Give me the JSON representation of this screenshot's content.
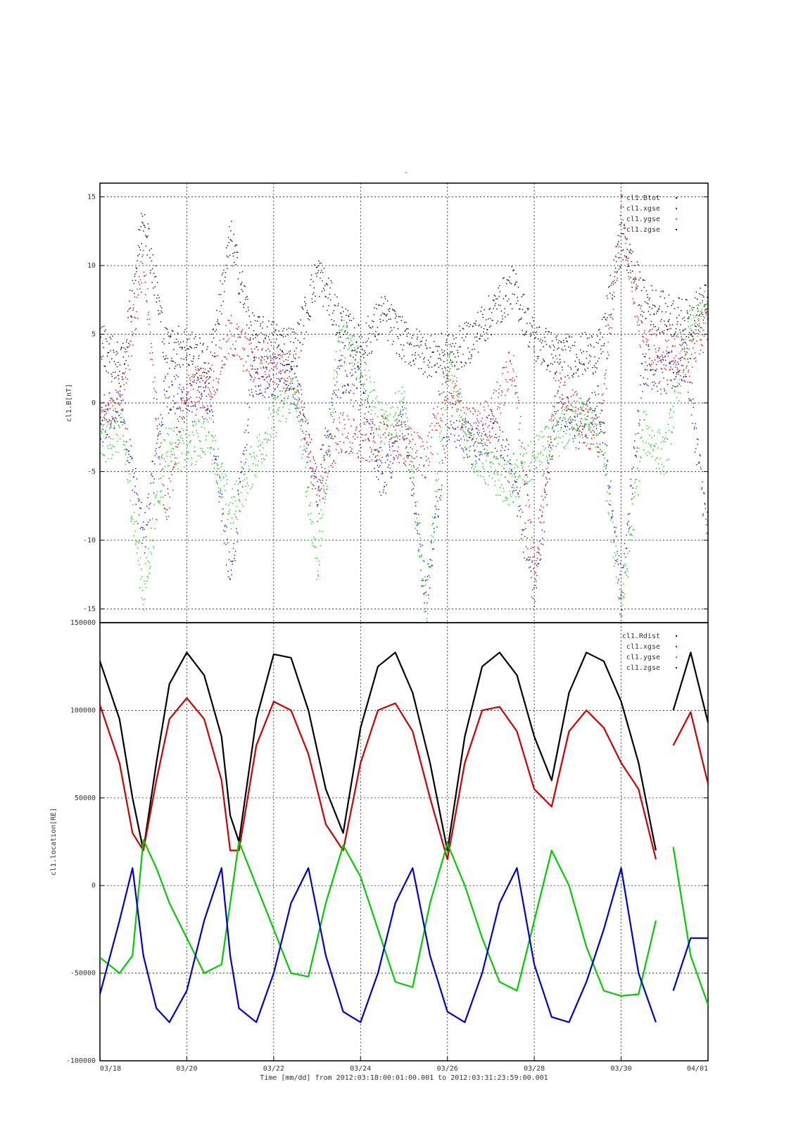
{
  "colors": {
    "black": "#000000",
    "red": "#cc0000",
    "green": "#00cc00",
    "blue": "#0000cc",
    "grid": "#000000"
  },
  "chart_data": [
    {
      "type": "scatter",
      "title": "",
      "ylabel": "cl1.B[nT]",
      "xlabel": "",
      "ylim": [
        -16,
        16
      ],
      "yticks": [
        -15,
        -10,
        -5,
        0,
        5,
        10,
        15
      ],
      "ytick_labels": [
        "-15",
        "-10",
        "-5",
        "0",
        "5",
        "10",
        "15"
      ],
      "grid": true,
      "legend_position": "top-right",
      "series": [
        {
          "name": "cl1.Btot",
          "color": "black",
          "x": [
            "03/18",
            "03/18 12h",
            "03/19",
            "03/19 12h",
            "03/20",
            "03/20 12h",
            "03/21",
            "03/21 12h",
            "03/22",
            "03/22 12h",
            "03/23",
            "03/23 12h",
            "03/24",
            "03/24 12h",
            "03/25",
            "03/25 12h",
            "03/26",
            "03/26 12h",
            "03/27",
            "03/27 12h",
            "03/28",
            "03/28 12h",
            "03/29",
            "03/29 12h",
            "03/30",
            "03/30 12h",
            "03/31",
            "03/31 12h",
            "04/01"
          ],
          "values": [
            4.5,
            2.5,
            14,
            4,
            4.2,
            2.5,
            12,
            5,
            4.5,
            4,
            9.5,
            6,
            4,
            6.5,
            4.5,
            3.5,
            3.5,
            4.5,
            6.5,
            8.5,
            4.5,
            3.5,
            3.5,
            3.8,
            12,
            7.5,
            6.5,
            6,
            7.5
          ]
        },
        {
          "name": "cl1.xgse",
          "color": "red",
          "x": [
            "03/18",
            "03/18 12h",
            "03/19",
            "03/19 12h",
            "03/20",
            "03/20 12h",
            "03/21",
            "03/21 12h",
            "03/22",
            "03/22 12h",
            "03/23",
            "03/23 12h",
            "03/24",
            "03/24 12h",
            "03/25",
            "03/25 12h",
            "03/26",
            "03/26 12h",
            "03/27",
            "03/27 12h",
            "03/28",
            "03/28 12h",
            "03/29",
            "03/29 12h",
            "03/30",
            "03/30 12h",
            "03/31",
            "03/31 12h",
            "04/01"
          ],
          "values": [
            -1,
            1,
            10,
            -8,
            1.5,
            1,
            5,
            3,
            3,
            2,
            -7,
            -2,
            -3,
            -2.5,
            -3,
            -4,
            2,
            -2,
            -1,
            3,
            -12,
            2,
            -1,
            -2.5,
            14,
            4,
            4,
            3,
            6
          ]
        },
        {
          "name": "cl1.ygse",
          "color": "green",
          "x": [
            "03/18",
            "03/18 12h",
            "03/19",
            "03/19 12h",
            "03/20",
            "03/20 12h",
            "03/21",
            "03/21 12h",
            "03/22",
            "03/22 12h",
            "03/23",
            "03/23 12h",
            "03/24",
            "03/24 12h",
            "03/25",
            "03/25 12h",
            "03/26",
            "03/26 12h",
            "03/27",
            "03/27 12h",
            "03/28",
            "03/28 12h",
            "03/29",
            "03/29 12h",
            "03/30",
            "03/30 12h",
            "03/31",
            "03/31 12h",
            "04/01"
          ],
          "values": [
            -3,
            -2,
            -14,
            -3,
            -3.5,
            -2,
            -8,
            -4.5,
            -1,
            1,
            -12,
            5,
            3,
            -2,
            0,
            -15,
            3,
            -3,
            -5,
            -6,
            -4,
            -2.5,
            -1,
            -2,
            -15,
            -2,
            -4,
            5,
            7
          ]
        },
        {
          "name": "cl1.zgse",
          "color": "blue",
          "x": [
            "03/18",
            "03/18 12h",
            "03/19",
            "03/19 12h",
            "03/20",
            "03/20 12h",
            "03/21",
            "03/21 12h",
            "03/22",
            "03/22 12h",
            "03/23",
            "03/23 12h",
            "03/24",
            "03/24 12h",
            "03/25",
            "03/25 12h",
            "03/26",
            "03/26 12h",
            "03/27",
            "03/27 12h",
            "03/28",
            "03/28 12h",
            "03/29",
            "03/29 12h",
            "03/30",
            "03/30 12h",
            "03/31",
            "03/31 12h",
            "04/01"
          ],
          "values": [
            -2,
            0,
            -10,
            1,
            0,
            0.5,
            -13,
            2,
            2,
            1,
            -6,
            2,
            1,
            -6,
            -1,
            -14,
            -1,
            -3,
            -2,
            -5,
            -14,
            0,
            -2,
            0,
            -14,
            3,
            2,
            3,
            -10
          ]
        }
      ]
    },
    {
      "type": "line",
      "title": "",
      "ylabel": "cl1.location[RE]",
      "xlabel": "Time [mm/dd]  from 2012:03:18:00:01:00.001  to  2012:03:31:23:59:00.001",
      "ylim": [
        -100000,
        150000
      ],
      "yticks": [
        -100000,
        -50000,
        0,
        50000,
        100000,
        150000
      ],
      "ytick_labels": [
        "-100000",
        "-50000",
        "0",
        "50000",
        "100000",
        "150000"
      ],
      "x_tick_labels": [
        "03/18",
        "03/20",
        "03/22",
        "03/24",
        "03/26",
        "03/28",
        "03/30",
        "04/01"
      ],
      "xlim_days": [
        0,
        14
      ],
      "grid": true,
      "legend_position": "top-right",
      "data_gap_days": [
        13.0,
        13.18
      ],
      "series": [
        {
          "name": "cl1.Rdist",
          "color": "black",
          "x_days": [
            0,
            0.45,
            0.75,
            1.0,
            1.3,
            1.6,
            2.0,
            2.4,
            2.8,
            3.0,
            3.2,
            3.6,
            4.0,
            4.4,
            4.8,
            5.2,
            5.6,
            6.0,
            6.4,
            6.8,
            7.2,
            7.6,
            8.0,
            8.4,
            8.8,
            9.2,
            9.6,
            10.0,
            10.4,
            10.8,
            11.2,
            11.6,
            12.0,
            12.4,
            12.8,
            13.2,
            13.6,
            14.0
          ],
          "values": [
            128000,
            95000,
            50000,
            20000,
            70000,
            115000,
            133000,
            120000,
            85000,
            40000,
            25000,
            95000,
            132000,
            130000,
            100000,
            55000,
            30000,
            90000,
            125000,
            133000,
            110000,
            70000,
            20000,
            85000,
            125000,
            133000,
            120000,
            85000,
            60000,
            110000,
            133000,
            128000,
            105000,
            70000,
            20000,
            100000,
            133000,
            93000
          ]
        },
        {
          "name": "cl1.xgse",
          "color": "red",
          "x_days": [
            0,
            0.45,
            0.75,
            1.0,
            1.3,
            1.6,
            2.0,
            2.4,
            2.8,
            3.0,
            3.2,
            3.6,
            4.0,
            4.4,
            4.8,
            5.2,
            5.6,
            6.0,
            6.4,
            6.8,
            7.2,
            7.6,
            8.0,
            8.4,
            8.8,
            9.2,
            9.6,
            10.0,
            10.4,
            10.8,
            11.2,
            11.6,
            12.0,
            12.4,
            12.8,
            13.2,
            13.6,
            14.0
          ],
          "values": [
            103000,
            70000,
            30000,
            20000,
            60000,
            95000,
            107000,
            95000,
            60000,
            20000,
            20000,
            80000,
            105000,
            100000,
            75000,
            35000,
            20000,
            70000,
            100000,
            104000,
            88000,
            50000,
            15000,
            70000,
            100000,
            102000,
            88000,
            55000,
            45000,
            88000,
            100000,
            90000,
            70000,
            55000,
            15000,
            80000,
            99000,
            58000
          ]
        },
        {
          "name": "cl1.ygse",
          "color": "green",
          "x_days": [
            0,
            0.45,
            0.75,
            1.0,
            1.3,
            1.6,
            2.0,
            2.4,
            2.8,
            3.0,
            3.2,
            3.6,
            4.0,
            4.4,
            4.8,
            5.2,
            5.6,
            6.0,
            6.4,
            6.8,
            7.2,
            7.6,
            8.0,
            8.4,
            8.8,
            9.2,
            9.6,
            10.0,
            10.4,
            10.8,
            11.2,
            11.6,
            12.0,
            12.4,
            12.8,
            13.2,
            13.6,
            14.0
          ],
          "values": [
            -41000,
            -50000,
            -40000,
            26000,
            10000,
            -10000,
            -30000,
            -50000,
            -45000,
            -10000,
            25000,
            0,
            -25000,
            -50000,
            -52000,
            -10000,
            23000,
            5000,
            -25000,
            -55000,
            -58000,
            -10000,
            24000,
            0,
            -30000,
            -55000,
            -60000,
            -20000,
            20000,
            0,
            -35000,
            -60000,
            -63000,
            -62000,
            -20000,
            22000,
            -40000,
            -68000
          ]
        },
        {
          "name": "cl1.zgse",
          "color": "blue",
          "x_days": [
            0,
            0.45,
            0.75,
            1.0,
            1.3,
            1.6,
            2.0,
            2.4,
            2.8,
            3.0,
            3.2,
            3.6,
            4.0,
            4.4,
            4.8,
            5.2,
            5.6,
            6.0,
            6.4,
            6.8,
            7.2,
            7.6,
            8.0,
            8.4,
            8.8,
            9.2,
            9.6,
            10.0,
            10.4,
            10.8,
            11.2,
            11.6,
            12.0,
            12.4,
            12.8,
            13.2,
            13.6,
            14.0
          ],
          "values": [
            -62000,
            -20000,
            10000,
            -40000,
            -70000,
            -78000,
            -60000,
            -20000,
            10000,
            -40000,
            -70000,
            -78000,
            -50000,
            -10000,
            10000,
            -40000,
            -72000,
            -78000,
            -50000,
            -10000,
            10000,
            -40000,
            -72000,
            -78000,
            -50000,
            -10000,
            10000,
            -45000,
            -75000,
            -78000,
            -55000,
            -25000,
            10000,
            -50000,
            -78000,
            -60000,
            -30000,
            -30000
          ]
        }
      ]
    }
  ],
  "top_marker": "-"
}
